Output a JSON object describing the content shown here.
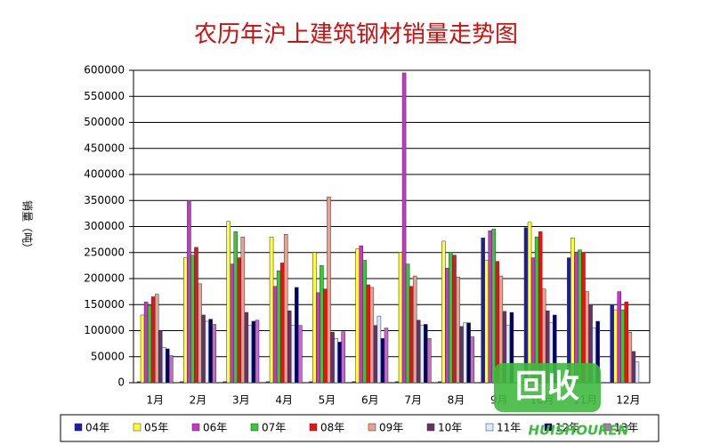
{
  "chart_data": {
    "type": "bar",
    "title": "农历年沪上建筑钢材销量走势图",
    "y_label": "销量（吨）",
    "categories": [
      "1月",
      "2月",
      "3月",
      "4月",
      "5月",
      "6月",
      "7月",
      "8月",
      "9月",
      "10月",
      "11月",
      "12月"
    ],
    "series": [
      {
        "name": "04年",
        "color": "#1c1ca8",
        "values": [
          2000,
          2000,
          2000,
          2000,
          2000,
          2000,
          2000,
          2000,
          278000,
          298000,
          240000,
          150000
        ]
      },
      {
        "name": "05年",
        "color": "#ffff33",
        "values": [
          130000,
          240000,
          310000,
          280000,
          250000,
          257000,
          250000,
          272000,
          235000,
          308000,
          278000,
          140000
        ]
      },
      {
        "name": "06年",
        "color": "#cc33cc",
        "values": [
          155000,
          350000,
          228000,
          185000,
          173000,
          263000,
          595000,
          220000,
          292000,
          240000,
          248000,
          175000
        ]
      },
      {
        "name": "07年",
        "color": "#33cc33",
        "values": [
          148000,
          245000,
          290000,
          215000,
          225000,
          235000,
          228000,
          250000,
          295000,
          280000,
          255000,
          140000
        ]
      },
      {
        "name": "08年",
        "color": "#ee1111",
        "values": [
          165000,
          260000,
          240000,
          230000,
          180000,
          188000,
          185000,
          245000,
          233000,
          290000,
          250000,
          155000
        ]
      },
      {
        "name": "09年",
        "color": "#e8a090",
        "values": [
          170000,
          190000,
          280000,
          285000,
          357000,
          183000,
          205000,
          203000,
          205000,
          180000,
          175000,
          97000
        ]
      },
      {
        "name": "10年",
        "color": "#663366",
        "values": [
          100000,
          130000,
          135000,
          138000,
          97000,
          110000,
          120000,
          108000,
          137000,
          138000,
          150000,
          60000
        ]
      },
      {
        "name": "11年",
        "color": "#dde8ff",
        "values": [
          68000,
          118000,
          110000,
          110000,
          85000,
          128000,
          110000,
          115000,
          110000,
          115000,
          105000,
          40000
        ]
      },
      {
        "name": "12年",
        "color": "#000066",
        "values": [
          65000,
          122000,
          118000,
          183000,
          78000,
          85000,
          112000,
          115000,
          135000,
          130000,
          118000,
          null
        ]
      },
      {
        "name": "13年",
        "color": "#cc66cc",
        "values": [
          52000,
          112000,
          120000,
          110000,
          98000,
          105000,
          85000,
          88000,
          null,
          null,
          null,
          null
        ]
      }
    ],
    "ylim": [
      0,
      600000
    ],
    "yticks": [
      0,
      50000,
      100000,
      150000,
      200000,
      250000,
      300000,
      350000,
      400000,
      450000,
      500000,
      550000,
      600000
    ],
    "grid": true,
    "legend": "bottom",
    "watermark": {
      "logo": "回收",
      "text": "HUISHOUREN"
    }
  }
}
